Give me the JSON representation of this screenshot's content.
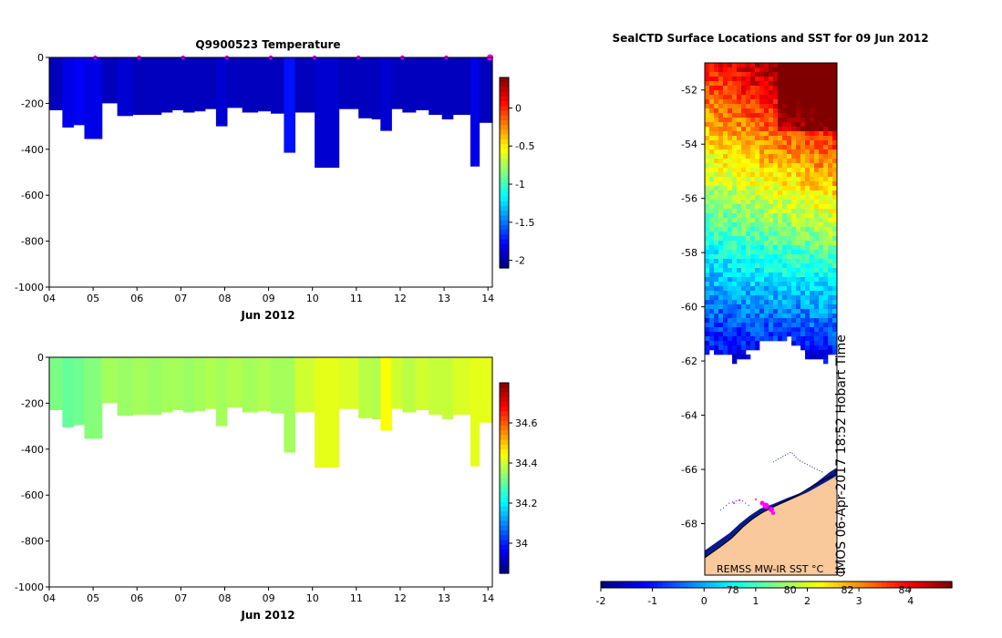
{
  "chart_data": [
    {
      "type": "heatmap",
      "title": "Q9900523  Temperature",
      "xlabel": "Jun 2012",
      "ylabel": "",
      "x_tick_labels": [
        "04",
        "05",
        "06",
        "07",
        "08",
        "09",
        "10",
        "11",
        "12",
        "13",
        "14"
      ],
      "x_range": [
        4.0,
        14.1
      ],
      "y_range": [
        -1000,
        0
      ],
      "y_tick_labels": [
        "0",
        "-200",
        "-400",
        "-600",
        "-800",
        "-1000"
      ],
      "colorbar_range": [
        -2.1,
        0.4
      ],
      "colorbar_ticks": [
        "0",
        "-0.5",
        "-1",
        "-1.5",
        "-2"
      ],
      "profile_marks_day": [
        5.0,
        6.0,
        7.0,
        8.0,
        9.0,
        10.0,
        11.0,
        12.0,
        12.0,
        13.0,
        14.0
      ],
      "profiles": [
        {
          "t0": 4.0,
          "t1": 4.3,
          "depth": 230,
          "value": -1.95
        },
        {
          "t0": 4.3,
          "t1": 4.55,
          "depth": 305,
          "value": -1.85
        },
        {
          "t0": 4.55,
          "t1": 4.8,
          "depth": 295,
          "value": -1.8
        },
        {
          "t0": 4.8,
          "t1": 5.2,
          "depth": 355,
          "value": -1.85
        },
        {
          "t0": 5.2,
          "t1": 5.55,
          "depth": 200,
          "value": -1.95
        },
        {
          "t0": 5.55,
          "t1": 5.9,
          "depth": 255,
          "value": -1.9
        },
        {
          "t0": 5.9,
          "t1": 6.25,
          "depth": 250,
          "value": -1.95
        },
        {
          "t0": 6.25,
          "t1": 6.55,
          "depth": 250,
          "value": -1.95
        },
        {
          "t0": 6.55,
          "t1": 6.8,
          "depth": 240,
          "value": -1.95
        },
        {
          "t0": 6.8,
          "t1": 7.05,
          "depth": 230,
          "value": -1.95
        },
        {
          "t0": 7.05,
          "t1": 7.3,
          "depth": 240,
          "value": -1.95
        },
        {
          "t0": 7.3,
          "t1": 7.55,
          "depth": 235,
          "value": -1.95
        },
        {
          "t0": 7.55,
          "t1": 7.8,
          "depth": 225,
          "value": -1.95
        },
        {
          "t0": 7.8,
          "t1": 8.05,
          "depth": 300,
          "value": -1.9
        },
        {
          "t0": 8.05,
          "t1": 8.4,
          "depth": 220,
          "value": -1.95
        },
        {
          "t0": 8.4,
          "t1": 8.75,
          "depth": 240,
          "value": -1.95
        },
        {
          "t0": 8.75,
          "t1": 9.05,
          "depth": 235,
          "value": -1.95
        },
        {
          "t0": 9.05,
          "t1": 9.35,
          "depth": 245,
          "value": -1.95
        },
        {
          "t0": 9.35,
          "t1": 9.6,
          "depth": 415,
          "value": -1.75
        },
        {
          "t0": 9.6,
          "t1": 10.05,
          "depth": 240,
          "value": -1.95
        },
        {
          "t0": 10.05,
          "t1": 10.6,
          "depth": 480,
          "value": -1.9
        },
        {
          "t0": 10.6,
          "t1": 11.05,
          "depth": 225,
          "value": -1.95
        },
        {
          "t0": 11.05,
          "t1": 11.35,
          "depth": 265,
          "value": -1.95
        },
        {
          "t0": 11.35,
          "t1": 11.55,
          "depth": 270,
          "value": -1.95
        },
        {
          "t0": 11.55,
          "t1": 11.8,
          "depth": 320,
          "value": -1.9
        },
        {
          "t0": 11.8,
          "t1": 12.05,
          "depth": 225,
          "value": -1.95
        },
        {
          "t0": 12.05,
          "t1": 12.35,
          "depth": 240,
          "value": -1.95
        },
        {
          "t0": 12.35,
          "t1": 12.65,
          "depth": 230,
          "value": -1.95
        },
        {
          "t0": 12.65,
          "t1": 12.95,
          "depth": 250,
          "value": -1.95
        },
        {
          "t0": 12.95,
          "t1": 13.2,
          "depth": 270,
          "value": -1.95
        },
        {
          "t0": 13.2,
          "t1": 13.6,
          "depth": 250,
          "value": -1.95
        },
        {
          "t0": 13.6,
          "t1": 13.8,
          "depth": 475,
          "value": -1.85
        },
        {
          "t0": 13.8,
          "t1": 14.1,
          "depth": 285,
          "value": -1.95
        }
      ]
    },
    {
      "type": "heatmap",
      "title": "",
      "xlabel": "Jun 2012",
      "ylabel": "",
      "x_tick_labels": [
        "04",
        "05",
        "06",
        "07",
        "08",
        "09",
        "10",
        "11",
        "12",
        "13",
        "14"
      ],
      "x_range": [
        4.0,
        14.1
      ],
      "y_range": [
        -1000,
        0
      ],
      "y_tick_labels": [
        "0",
        "-200",
        "-400",
        "-600",
        "-800",
        "-1000"
      ],
      "colorbar_range": [
        33.85,
        34.8
      ],
      "colorbar_ticks": [
        "34.6",
        "34.4",
        "34.2",
        "34"
      ],
      "profiles_salinity": [
        {
          "t0": 4.0,
          "t1": 4.3,
          "depth": 230,
          "value": 34.32
        },
        {
          "t0": 4.3,
          "t1": 4.55,
          "depth": 305,
          "value": 34.3
        },
        {
          "t0": 4.55,
          "t1": 4.8,
          "depth": 295,
          "value": 34.31
        },
        {
          "t0": 4.8,
          "t1": 5.2,
          "depth": 355,
          "value": 34.33
        },
        {
          "t0": 5.2,
          "t1": 5.55,
          "depth": 200,
          "value": 34.36
        },
        {
          "t0": 5.55,
          "t1": 5.9,
          "depth": 255,
          "value": 34.35
        },
        {
          "t0": 5.9,
          "t1": 6.25,
          "depth": 250,
          "value": 34.36
        },
        {
          "t0": 6.25,
          "t1": 6.55,
          "depth": 250,
          "value": 34.35
        },
        {
          "t0": 6.55,
          "t1": 6.8,
          "depth": 240,
          "value": 34.36
        },
        {
          "t0": 6.8,
          "t1": 7.05,
          "depth": 230,
          "value": 34.36
        },
        {
          "t0": 7.05,
          "t1": 7.3,
          "depth": 240,
          "value": 34.35
        },
        {
          "t0": 7.3,
          "t1": 7.55,
          "depth": 235,
          "value": 34.36
        },
        {
          "t0": 7.55,
          "t1": 7.8,
          "depth": 225,
          "value": 34.37
        },
        {
          "t0": 7.8,
          "t1": 8.05,
          "depth": 300,
          "value": 34.36
        },
        {
          "t0": 8.05,
          "t1": 8.4,
          "depth": 220,
          "value": 34.37
        },
        {
          "t0": 8.4,
          "t1": 8.75,
          "depth": 240,
          "value": 34.36
        },
        {
          "t0": 8.75,
          "t1": 9.05,
          "depth": 235,
          "value": 34.37
        },
        {
          "t0": 9.05,
          "t1": 9.35,
          "depth": 245,
          "value": 34.36
        },
        {
          "t0": 9.35,
          "t1": 9.6,
          "depth": 415,
          "value": 34.36
        },
        {
          "t0": 9.6,
          "t1": 10.05,
          "depth": 240,
          "value": 34.4
        },
        {
          "t0": 10.05,
          "t1": 10.6,
          "depth": 480,
          "value": 34.42
        },
        {
          "t0": 10.6,
          "t1": 11.05,
          "depth": 225,
          "value": 34.41
        },
        {
          "t0": 11.05,
          "t1": 11.35,
          "depth": 265,
          "value": 34.38
        },
        {
          "t0": 11.35,
          "t1": 11.55,
          "depth": 270,
          "value": 34.37
        },
        {
          "t0": 11.55,
          "t1": 11.8,
          "depth": 320,
          "value": 34.44
        },
        {
          "t0": 11.8,
          "t1": 12.05,
          "depth": 225,
          "value": 34.4
        },
        {
          "t0": 12.05,
          "t1": 12.35,
          "depth": 240,
          "value": 34.38
        },
        {
          "t0": 12.35,
          "t1": 12.65,
          "depth": 230,
          "value": 34.4
        },
        {
          "t0": 12.65,
          "t1": 12.95,
          "depth": 250,
          "value": 34.39
        },
        {
          "t0": 12.95,
          "t1": 13.2,
          "depth": 270,
          "value": 34.39
        },
        {
          "t0": 13.2,
          "t1": 13.6,
          "depth": 250,
          "value": 34.41
        },
        {
          "t0": 13.6,
          "t1": 13.8,
          "depth": 475,
          "value": 34.42
        },
        {
          "t0": 13.8,
          "t1": 14.1,
          "depth": 285,
          "value": 34.42
        }
      ]
    },
    {
      "type": "heatmap",
      "title": "SealCTD Surface Locations and SST for 09 Jun 2012",
      "y_tick_labels": [
        "-52",
        "-54",
        "-56",
        "-58",
        "-60",
        "-62",
        "-64",
        "-66",
        "-68"
      ],
      "y_range": [
        -69.9,
        -51.0
      ],
      "colorbar_range": [
        -2.0,
        4.8
      ],
      "colorbar_ticks": [
        "-2",
        "-1",
        "0",
        "1",
        "2",
        "3",
        "4"
      ],
      "colorbar_sub_labels": [
        "78",
        "80",
        "82",
        "84"
      ],
      "source_label": "REMSS MW-IR SST °C",
      "credit": "IMOS 06-Apr-2017 18:52 Hobart Time"
    }
  ],
  "colors": {
    "land": "#f9c89b",
    "marker": "#ff00ff",
    "ice_edge": "#0a1a8a"
  }
}
